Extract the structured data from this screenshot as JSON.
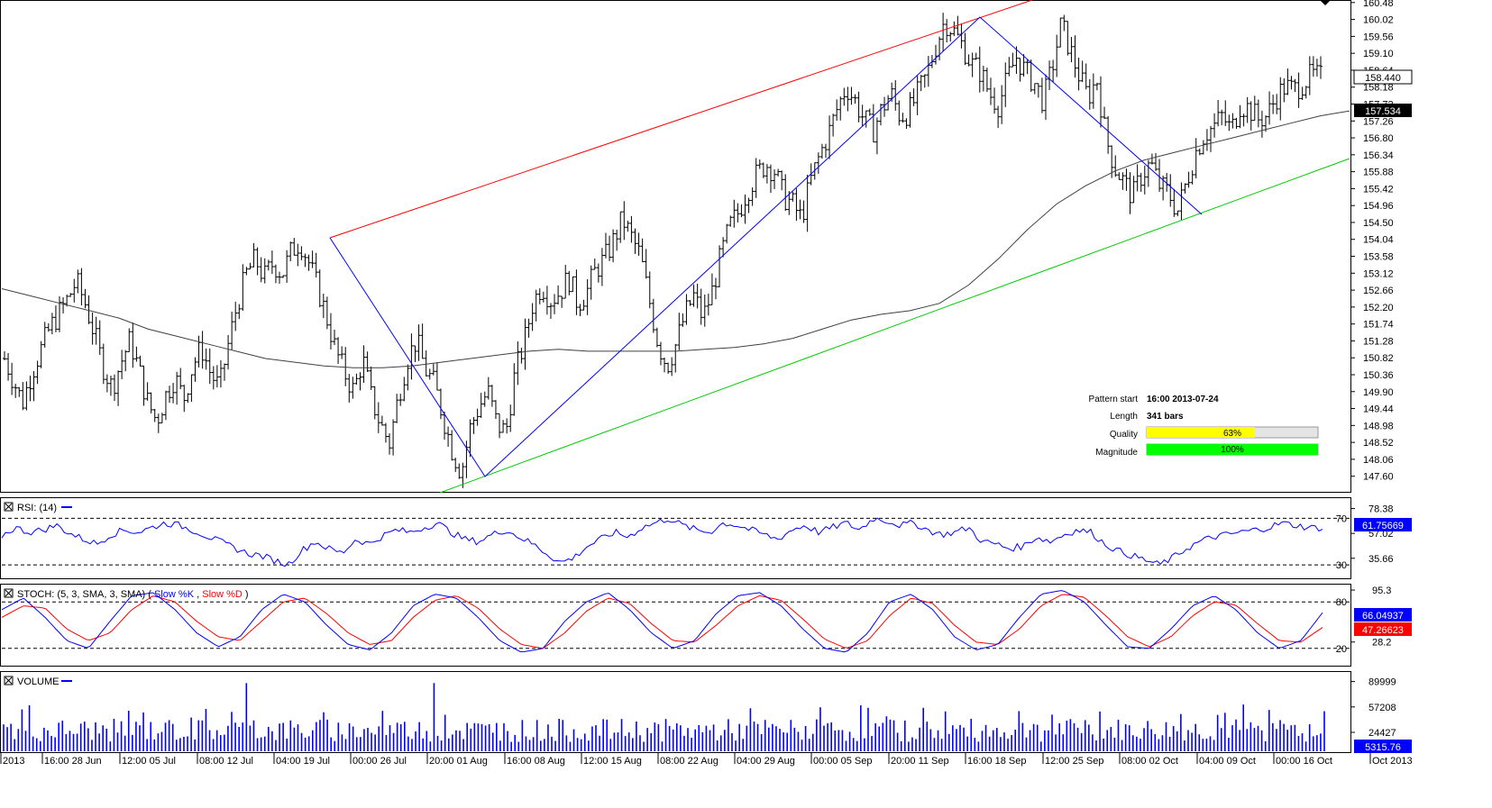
{
  "chart_data": [
    {
      "type": "line",
      "panel": "price",
      "price_axis_ticks": [
        "160.48",
        "160.02",
        "159.56",
        "159.10",
        "158.64",
        "158.18",
        "157.72",
        "157.26",
        "156.80",
        "156.34",
        "155.88",
        "155.42",
        "154.96",
        "154.50",
        "154.04",
        "153.58",
        "153.12",
        "152.66",
        "152.20",
        "151.74",
        "151.28",
        "150.82",
        "150.36",
        "149.90",
        "149.44",
        "148.98",
        "148.52",
        "148.06",
        "147.60"
      ],
      "ylim": [
        147.2,
        160.5
      ],
      "current_price": "158.440",
      "ma_value": "157.534",
      "time_labels": [
        "2013",
        "16:00 28 Jun",
        "12:00 05 Jul",
        "08:00 12 Jul",
        "04:00 19 Jul",
        "00:00 26 Jul",
        "20:00 01 Aug",
        "16:00 08 Aug",
        "12:00 15 Aug",
        "08:00 22 Aug",
        "04:00 29 Aug",
        "00:00 05 Sep",
        "20:00 11 Sep",
        "16:00 18 Sep",
        "12:00 25 Sep",
        "08:00 02 Oct",
        "04:00 09 Oct",
        "00:00 16 Oct",
        "Oct 2013"
      ],
      "price_path": [
        150.8,
        150.2,
        149.6,
        150.4,
        151.0,
        151.6,
        152.0,
        152.4,
        152.9,
        152.3,
        151.5,
        150.6,
        150.0,
        150.7,
        151.3,
        150.5,
        149.6,
        149.1,
        149.8,
        150.3,
        149.7,
        150.6,
        151.1,
        150.4,
        150.0,
        151.2,
        152.3,
        153.1,
        153.5,
        153.0,
        153.4,
        153.1,
        153.7,
        154.0,
        153.4,
        152.7,
        151.9,
        151.0,
        150.4,
        149.9,
        150.8,
        149.7,
        149.0,
        148.5,
        149.8,
        150.8,
        151.3,
        150.5,
        150.1,
        149.2,
        148.3,
        147.7,
        148.9,
        149.5,
        149.9,
        149.0,
        148.8,
        150.4,
        151.2,
        152.3,
        152.8,
        152.4,
        152.6,
        153.0,
        152.3,
        152.6,
        153.2,
        153.5,
        154.0,
        154.6,
        154.1,
        153.6,
        152.4,
        151.2,
        150.6,
        151.2,
        152.0,
        152.5,
        151.9,
        152.6,
        153.6,
        154.4,
        154.8,
        155.4,
        155.8,
        156.1,
        155.9,
        155.2,
        155.0,
        154.6,
        155.6,
        156.3,
        156.9,
        157.6,
        158.2,
        157.8,
        157.3,
        157.0,
        157.6,
        158.0,
        157.4,
        157.5,
        158.0,
        158.5,
        159.3,
        160.0,
        159.7,
        159.3,
        158.8,
        158.6,
        158.0,
        157.7,
        158.4,
        159.0,
        158.6,
        158.3,
        157.8,
        158.7,
        159.9,
        159.2,
        158.5,
        157.9,
        158.4,
        156.8,
        156.0,
        155.6,
        155.2,
        155.8,
        156.1,
        155.5,
        155.3,
        154.8,
        155.6,
        156.4,
        156.9,
        157.1,
        157.4,
        157.0,
        157.7,
        157.6,
        157.3,
        157.4,
        157.9,
        158.2,
        158.1,
        158.3,
        158.5,
        158.44
      ],
      "ma_path": [
        152.7,
        152.5,
        152.3,
        152.1,
        151.9,
        151.6,
        151.4,
        151.2,
        151.0,
        150.8,
        150.7,
        150.6,
        150.55,
        150.55,
        150.6,
        150.7,
        150.8,
        150.9,
        151.0,
        151.05,
        151.0,
        151.0,
        151.0,
        151.0,
        151.05,
        151.1,
        151.2,
        151.35,
        151.6,
        151.85,
        152.0,
        152.1,
        152.3,
        152.8,
        153.5,
        154.3,
        155.0,
        155.5,
        155.9,
        156.2,
        156.4,
        156.6,
        156.8,
        157.0,
        157.2,
        157.4,
        157.534
      ],
      "pattern_lines": [
        {
          "name": "resistance",
          "color": "#ff0000"
        },
        {
          "name": "support",
          "color": "#00cc00"
        },
        {
          "name": "zigzag",
          "color": "#0000ff"
        }
      ]
    },
    {
      "type": "line",
      "panel": "rsi",
      "title": "RSI: (14)",
      "levels": [
        "70",
        "30"
      ],
      "axis_ticks": [
        "78.38",
        "57.02",
        "35.66"
      ],
      "ylim": [
        20,
        85
      ],
      "current": "61.75669",
      "color": "#0000ff",
      "values": [
        55,
        62,
        58,
        60,
        64,
        57,
        52,
        48,
        56,
        60,
        58,
        62,
        66,
        64,
        60,
        55,
        50,
        45,
        40,
        38,
        34,
        30,
        42,
        50,
        44,
        40,
        52,
        48,
        55,
        60,
        58,
        62,
        66,
        58,
        52,
        50,
        56,
        60,
        54,
        48,
        40,
        32,
        36,
        46,
        52,
        58,
        54,
        62,
        66,
        70,
        64,
        60,
        58,
        66,
        64,
        60,
        56,
        52,
        60,
        64,
        58,
        62,
        66,
        60,
        70,
        68,
        64,
        66,
        60,
        56,
        58,
        62,
        50,
        48,
        44,
        46,
        54,
        50,
        56,
        60,
        58,
        48,
        42,
        38,
        34,
        30,
        36,
        44,
        50,
        54,
        56,
        58,
        60,
        62,
        66,
        64,
        62,
        61.76
      ]
    },
    {
      "type": "line",
      "panel": "stochastic",
      "title": "STOCH: (5, 3, SMA, 3, SMA)",
      "legend": [
        "Slow %K",
        "Slow %D"
      ],
      "colors": [
        "#0000ff",
        "#ff0000"
      ],
      "levels": [
        "80",
        "20"
      ],
      "axis_ticks": [
        "95.3",
        "28.2"
      ],
      "ylim": [
        0,
        100
      ],
      "current_k": "66.04937",
      "current_d": "47.26623",
      "k_values": [
        70,
        85,
        60,
        30,
        20,
        55,
        88,
        92,
        70,
        40,
        22,
        35,
        70,
        90,
        80,
        50,
        25,
        18,
        40,
        75,
        90,
        85,
        60,
        30,
        15,
        20,
        55,
        80,
        92,
        70,
        40,
        20,
        30,
        65,
        88,
        92,
        75,
        45,
        20,
        15,
        40,
        80,
        90,
        70,
        35,
        18,
        25,
        60,
        90,
        95,
        80,
        50,
        22,
        20,
        45,
        75,
        88,
        70,
        40,
        20,
        30,
        66
      ],
      "d_values": [
        60,
        75,
        72,
        45,
        30,
        40,
        70,
        88,
        80,
        55,
        35,
        30,
        55,
        80,
        85,
        65,
        40,
        25,
        30,
        60,
        82,
        88,
        72,
        45,
        25,
        20,
        40,
        68,
        85,
        78,
        52,
        30,
        28,
        50,
        75,
        88,
        82,
        58,
        32,
        20,
        30,
        62,
        85,
        78,
        50,
        28,
        25,
        45,
        75,
        90,
        86,
        62,
        35,
        22,
        35,
        62,
        80,
        76,
        52,
        30,
        28,
        47
      ]
    },
    {
      "type": "bar",
      "panel": "volume",
      "title": "VOLUME",
      "axis_ticks": [
        "89999",
        "57208",
        "24427"
      ],
      "ylim": [
        0,
        100000
      ],
      "current": "5315.76",
      "color": "#0000ff"
    }
  ],
  "info_box": {
    "pattern_start_label": "Pattern start",
    "pattern_start_value": "16:00 2013-07-24",
    "length_label": "Length",
    "length_value": "341 bars",
    "quality_label": "Quality",
    "quality_value": "63%",
    "quality_fraction": 0.63,
    "quality_color": "#ffff00",
    "magnitude_label": "Magnitude",
    "magnitude_value": "100%",
    "magnitude_fraction": 1.0,
    "magnitude_color": "#00ff00"
  },
  "panel_close_icon": "close-box-icon"
}
